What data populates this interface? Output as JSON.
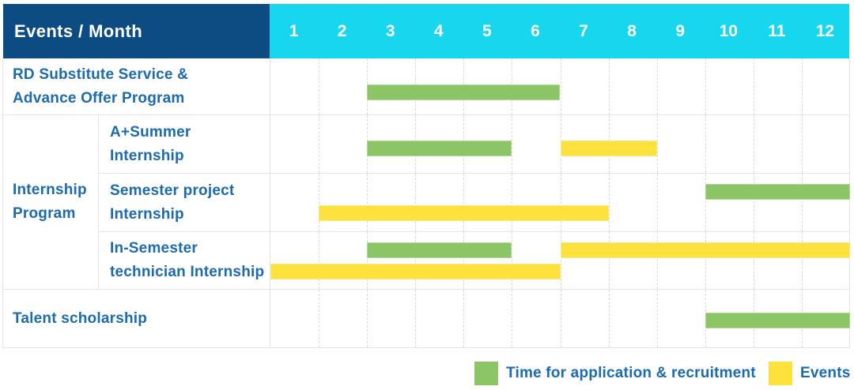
{
  "header": {
    "title": "Events / Month"
  },
  "colors": {
    "header_navy": "#0d4c82",
    "month_cyan": "#16d7ee",
    "label_blue": "#1c6ab0",
    "application_green": "#8cc566",
    "event_yellow": "#fde23e"
  },
  "chart_data": {
    "type": "gantt",
    "corner_label": "Events / Month",
    "months": [
      "1",
      "2",
      "3",
      "4",
      "5",
      "6",
      "7",
      "8",
      "9",
      "10",
      "11",
      "12"
    ],
    "x_range": [
      1,
      12
    ],
    "grid": "dashed-vertical-month-lines",
    "legend_position": "bottom-right",
    "legend": [
      {
        "kind": "application",
        "color_name": "green",
        "hex": "#8cc566",
        "label": "Time for application & recruitment"
      },
      {
        "kind": "event",
        "color_name": "yellow",
        "hex": "#fde23e",
        "label": "Events"
      }
    ],
    "rows": [
      {
        "label": "RD Substitute Service &\nAdvance Offer Program",
        "group": null,
        "bars": [
          {
            "kind": "application",
            "color": "green",
            "start_month": 3,
            "end_month": 6,
            "lane": "mid"
          }
        ]
      },
      {
        "label": "A+Summer\nInternship",
        "group": "Internship Program",
        "bars": [
          {
            "kind": "application",
            "color": "green",
            "start_month": 3,
            "end_month": 5,
            "lane": "mid"
          },
          {
            "kind": "event",
            "color": "yellow",
            "start_month": 7,
            "end_month": 8,
            "lane": "mid"
          }
        ]
      },
      {
        "label": "Semester project\nInternship",
        "group": "Internship Program",
        "bars": [
          {
            "kind": "application",
            "color": "green",
            "start_month": 10,
            "end_month": 12,
            "lane": "top"
          },
          {
            "kind": "event",
            "color": "yellow",
            "start_month": 2,
            "end_month": 7,
            "lane": "bottom"
          }
        ]
      },
      {
        "label": "In-Semester\ntechnician Internship",
        "group": "Internship Program",
        "bars": [
          {
            "kind": "application",
            "color": "green",
            "start_month": 3,
            "end_month": 5,
            "lane": "top"
          },
          {
            "kind": "event",
            "color": "yellow",
            "start_month": 7,
            "end_month": 12,
            "lane": "top"
          },
          {
            "kind": "event",
            "color": "yellow",
            "start_month": 1,
            "end_month": 6,
            "lane": "bottom"
          }
        ]
      },
      {
        "label": "Talent scholarship",
        "group": null,
        "bars": [
          {
            "kind": "application",
            "color": "green",
            "start_month": 10,
            "end_month": 12,
            "lane": "mid"
          }
        ]
      }
    ]
  }
}
